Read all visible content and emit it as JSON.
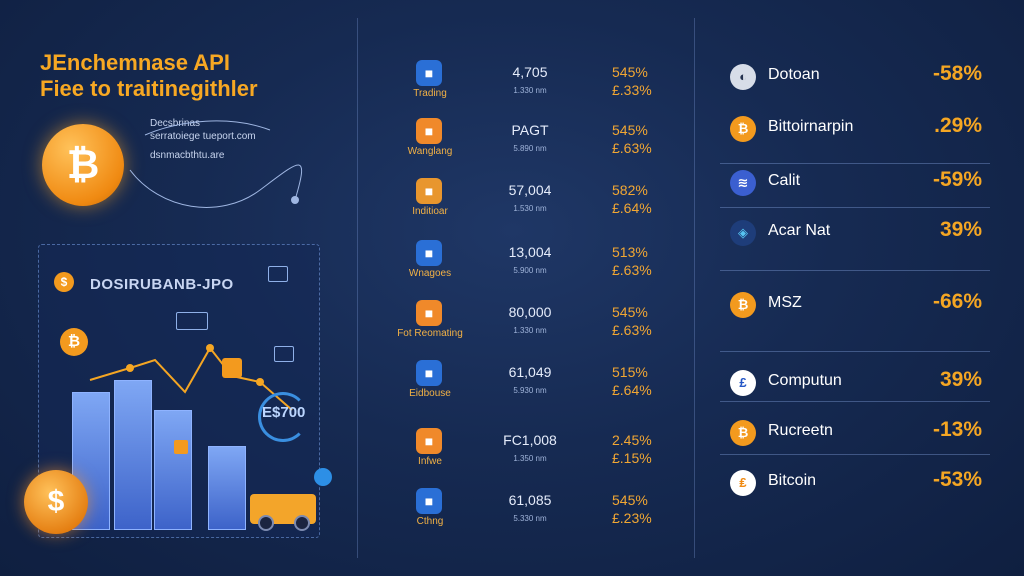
{
  "hero": {
    "title_line1": "JEnchemnase API",
    "title_line2": "Fiee to traitinegithler",
    "notes": [
      "Decsbrinas",
      "serratoiege tueport.com",
      "dsnmacbthtu.are"
    ],
    "dashboard_label": "DOSIRUBANB-JPO",
    "euro_label": "E$700",
    "bitcoin_symbol": "₿",
    "coin_symbol": "$"
  },
  "middle_rows": [
    {
      "label": "Trading",
      "value": "4,705",
      "sub": "1.330 nm",
      "pct1": "545%",
      "pct2": "£.33%",
      "icon_color": "#2a6fd6",
      "icon": "exchange-icon"
    },
    {
      "label": "Wanglang",
      "value": "PAGT",
      "sub": "5.890 nm",
      "pct1": "545%",
      "pct2": "£.63%",
      "icon_color": "#f0892a",
      "icon": "building-icon"
    },
    {
      "label": "Inditioar",
      "value": "57,004",
      "sub": "1.530 nm",
      "pct1": "582%",
      "pct2": "£.64%",
      "icon_color": "#e8962e",
      "icon": "chart-bars-icon"
    },
    {
      "label": "Wnagoes",
      "value": "13,004",
      "sub": "5.900 nm",
      "pct1": "513%",
      "pct2": "£.63%",
      "icon_color": "#2a6fd6",
      "icon": "brand-icon"
    },
    {
      "label": "Fot Reomating",
      "value": "80,000",
      "sub": "1.330 nm",
      "pct1": "545%",
      "pct2": "£.63%",
      "icon_color": "#f0892a",
      "icon": "house-icon"
    },
    {
      "label": "Eidbouse",
      "value": "61,049",
      "sub": "5.930 nm",
      "pct1": "515%",
      "pct2": "£.64%",
      "icon_color": "#2a6fd6",
      "icon": "cart-icon"
    },
    {
      "label": "Infwe",
      "value": "FC1,008",
      "sub": "1.350 nm",
      "pct1": "2.45%",
      "pct2": "£.15%",
      "icon_color": "#f0892a",
      "icon": "bars-icon"
    },
    {
      "label": "Cthng",
      "value": "61,085",
      "sub": "5.330 nm",
      "pct1": "545%",
      "pct2": "£.23%",
      "icon_color": "#2a6fd6",
      "icon": "list-icon"
    }
  ],
  "right_list": [
    {
      "name": "Dotoan",
      "pct": "-58%",
      "icon_bg": "#d7dde8",
      "icon_fg": "#24324f",
      "glyph": "◐",
      "icon": "dotoan-icon"
    },
    {
      "name": "Bittoirnarpin",
      "pct": ".29%",
      "icon_bg": "#f39a1e",
      "icon_fg": "#ffffff",
      "glyph": "₿",
      "icon": "bitcoin-icon"
    },
    {
      "name": "Calit",
      "pct": "-59%",
      "icon_bg": "#3b5fd0",
      "icon_fg": "#ffffff",
      "glyph": "≋",
      "icon": "calit-icon"
    },
    {
      "name": "Acar Nat",
      "pct": "39%",
      "icon_bg": "#1e3d7a",
      "icon_fg": "#57c4f2",
      "glyph": "◈",
      "icon": "acar-icon"
    },
    {
      "name": "MSZ",
      "pct": "-66%",
      "icon_bg": "#f39a1e",
      "icon_fg": "#ffffff",
      "glyph": "₿",
      "icon": "msz-icon"
    },
    {
      "name": "Computun",
      "pct": "39%",
      "icon_bg": "#ffffff",
      "icon_fg": "#2557c6",
      "glyph": "£",
      "icon": "computun-icon"
    },
    {
      "name": "Rucreetn",
      "pct": "-13%",
      "icon_bg": "#f39a1e",
      "icon_fg": "#ffffff",
      "glyph": "₿",
      "icon": "rucreetn-icon"
    },
    {
      "name": "Bitcoin",
      "pct": "-53%",
      "icon_bg": "#ffffff",
      "icon_fg": "#f08a12",
      "glyph": "₤",
      "icon": "bitcoin-icon"
    }
  ]
}
